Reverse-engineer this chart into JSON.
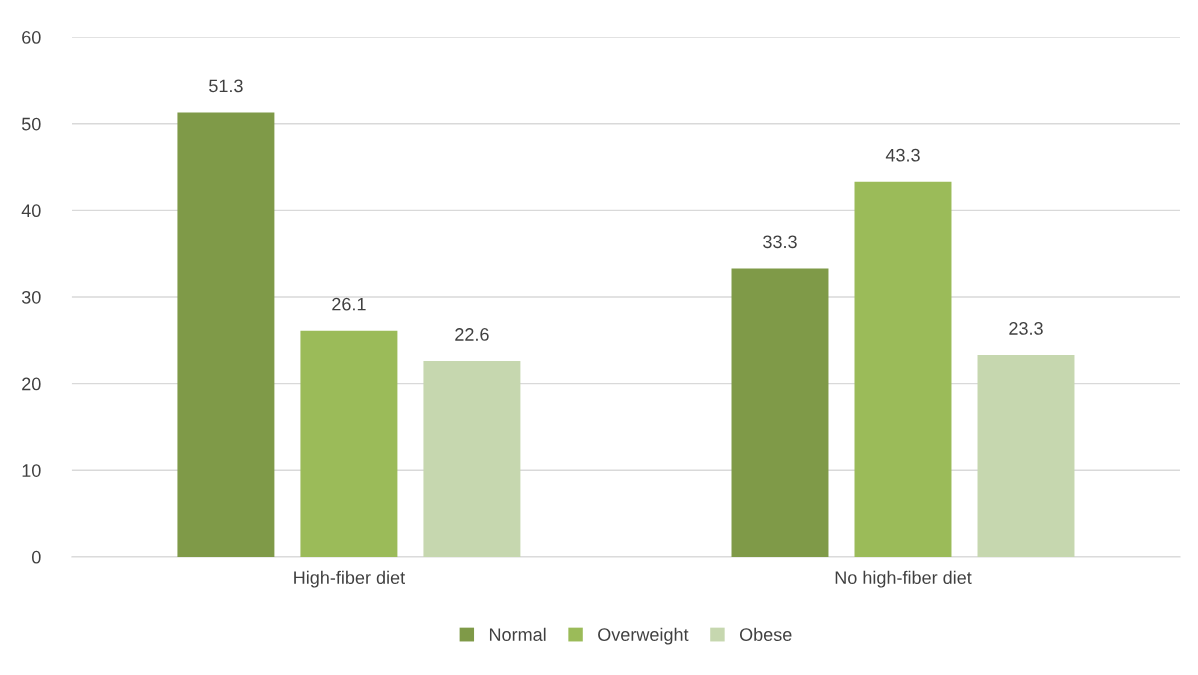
{
  "chart_data": {
    "type": "bar",
    "categories": [
      "High-fiber diet",
      "No high-fiber diet"
    ],
    "series": [
      {
        "name": "Normal",
        "color": "#7f9a48",
        "values": [
          51.3,
          33.3
        ]
      },
      {
        "name": "Overweight",
        "color": "#9bbb59",
        "values": [
          26.1,
          43.3
        ]
      },
      {
        "name": "Obese",
        "color": "#c6d7af",
        "values": [
          22.6,
          23.3
        ]
      }
    ],
    "ylim": [
      0,
      60
    ],
    "yticks": [
      0,
      10,
      20,
      30,
      40,
      50,
      60
    ],
    "grid": "y",
    "legend": "bottom",
    "data_labels": true
  }
}
